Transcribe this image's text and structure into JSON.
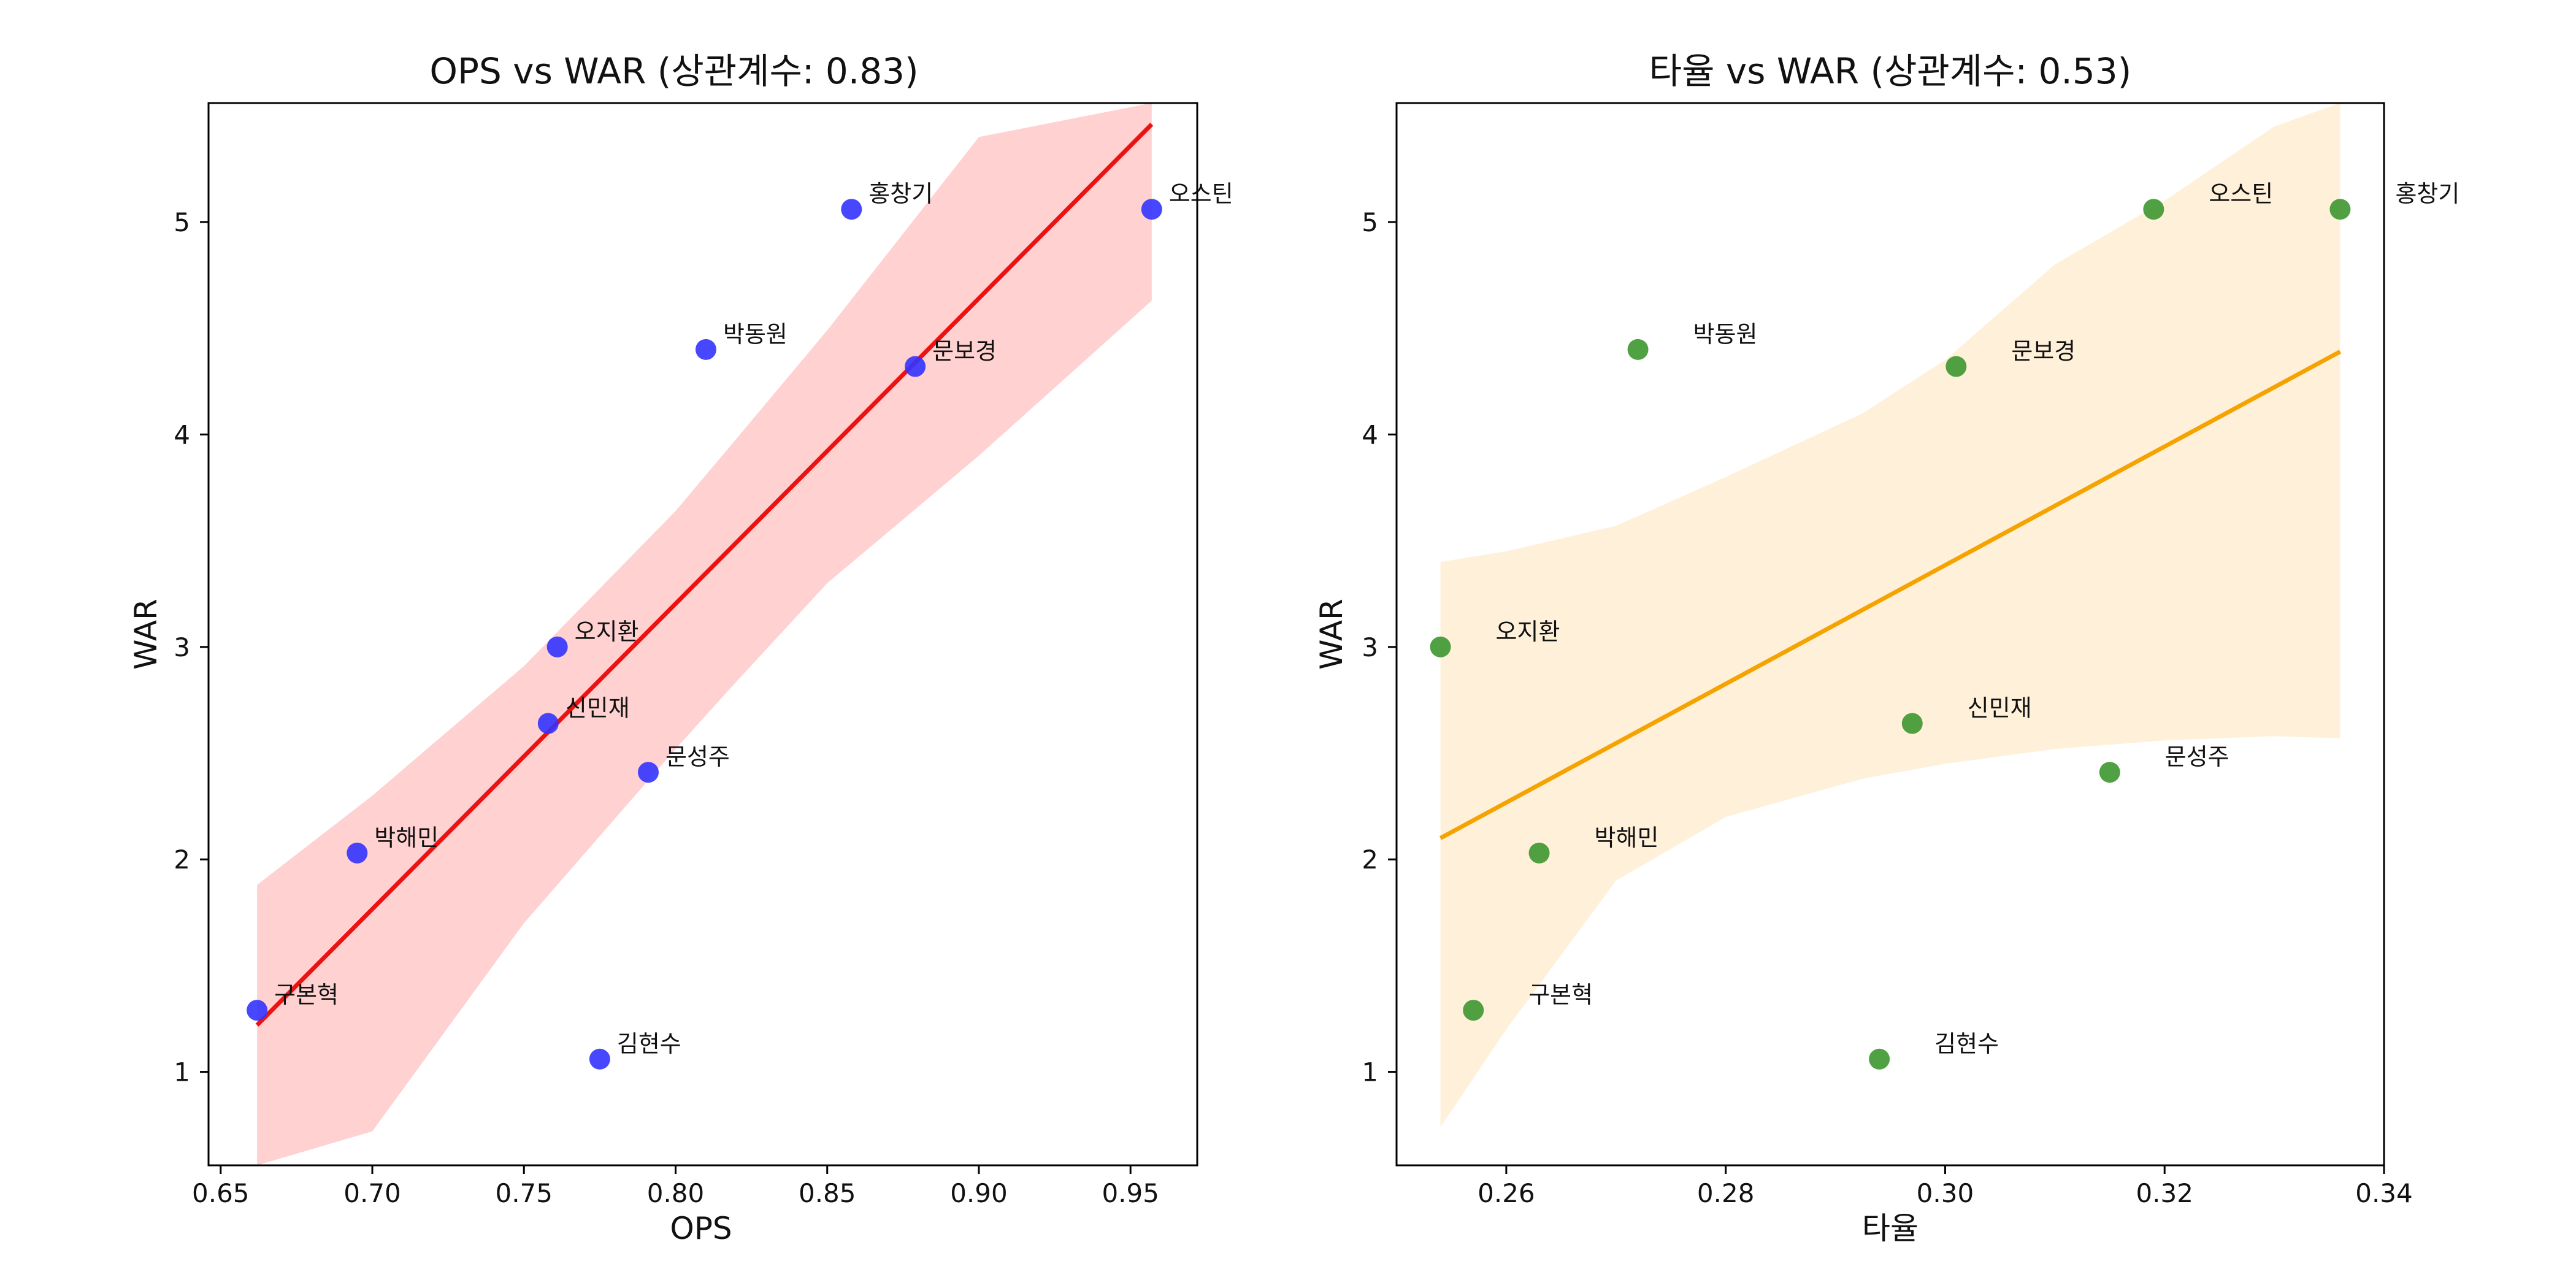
{
  "figure": {
    "background": "#ffffff"
  },
  "chart_data": [
    {
      "type": "scatter",
      "title": "OPS vs WAR (상관계수: 0.83)",
      "xlabel": "OPS",
      "ylabel": "WAR",
      "xlim": [
        0.646,
        0.972
      ],
      "ylim": [
        0.56,
        5.56
      ],
      "xticks": [
        0.65,
        0.7,
        0.75,
        0.8,
        0.85,
        0.9,
        0.95
      ],
      "xtick_labels": [
        "0.65",
        "0.70",
        "0.75",
        "0.80",
        "0.85",
        "0.90",
        "0.95"
      ],
      "yticks": [
        1,
        2,
        3,
        4,
        5
      ],
      "ytick_labels": [
        "1",
        "2",
        "3",
        "4",
        "5"
      ],
      "grid": false,
      "point_color": "#3333ff",
      "line_color": "#ee1111",
      "band_color": "#ffb3b3",
      "points": [
        {
          "name": "오스틴",
          "x": 0.957,
          "y": 5.06
        },
        {
          "name": "홍창기",
          "x": 0.858,
          "y": 5.06
        },
        {
          "name": "박동원",
          "x": 0.81,
          "y": 4.4
        },
        {
          "name": "문보경",
          "x": 0.879,
          "y": 4.32
        },
        {
          "name": "오지환",
          "x": 0.761,
          "y": 3.0
        },
        {
          "name": "신민재",
          "x": 0.758,
          "y": 2.64
        },
        {
          "name": "문성주",
          "x": 0.791,
          "y": 2.41
        },
        {
          "name": "박해민",
          "x": 0.695,
          "y": 2.03
        },
        {
          "name": "구본혁",
          "x": 0.662,
          "y": 1.29
        },
        {
          "name": "김현수",
          "x": 0.775,
          "y": 1.06
        }
      ],
      "regression": {
        "x": [
          0.662,
          0.957
        ],
        "y": [
          1.22,
          5.46
        ]
      },
      "confidence_band": {
        "x": [
          0.662,
          0.7,
          0.75,
          0.8,
          0.8177,
          0.85,
          0.9,
          0.957
        ],
        "upper": [
          1.88,
          2.3,
          2.91,
          3.64,
          3.94,
          4.49,
          5.4,
          5.56
        ],
        "lower": [
          0.56,
          0.72,
          1.7,
          2.52,
          2.8,
          3.3,
          3.9,
          4.63
        ]
      }
    },
    {
      "type": "scatter",
      "title": "타율 vs WAR (상관계수: 0.53)",
      "xlabel": "타율",
      "ylabel": "WAR",
      "xlim": [
        0.25,
        0.34
      ],
      "ylim": [
        0.56,
        5.56
      ],
      "xticks": [
        0.26,
        0.28,
        0.3,
        0.32,
        0.34
      ],
      "xtick_labels": [
        "0.26",
        "0.28",
        "0.30",
        "0.32",
        "0.34"
      ],
      "yticks": [
        1,
        2,
        3,
        4,
        5
      ],
      "ytick_labels": [
        "1",
        "2",
        "3",
        "4",
        "5"
      ],
      "grid": false,
      "point_color": "#3d9630",
      "line_color": "#f5a300",
      "band_color": "#ffe6bf",
      "points": [
        {
          "name": "오스틴",
          "x": 0.319,
          "y": 5.06
        },
        {
          "name": "홍창기",
          "x": 0.336,
          "y": 5.06
        },
        {
          "name": "박동원",
          "x": 0.272,
          "y": 4.4
        },
        {
          "name": "문보경",
          "x": 0.301,
          "y": 4.32
        },
        {
          "name": "오지환",
          "x": 0.254,
          "y": 3.0
        },
        {
          "name": "신민재",
          "x": 0.297,
          "y": 2.64
        },
        {
          "name": "문성주",
          "x": 0.315,
          "y": 2.41
        },
        {
          "name": "박해민",
          "x": 0.263,
          "y": 2.03
        },
        {
          "name": "구본혁",
          "x": 0.257,
          "y": 1.29
        },
        {
          "name": "김현수",
          "x": 0.294,
          "y": 1.06
        }
      ],
      "regression": {
        "x": [
          0.254,
          0.336
        ],
        "y": [
          2.1,
          4.39
        ]
      },
      "confidence_band": {
        "x": [
          0.254,
          0.26,
          0.27,
          0.28,
          0.2925,
          0.3,
          0.31,
          0.32,
          0.33,
          0.336
        ],
        "upper": [
          3.4,
          3.45,
          3.57,
          3.8,
          4.1,
          4.35,
          4.8,
          5.1,
          5.45,
          5.56
        ],
        "lower": [
          0.74,
          1.2,
          1.9,
          2.2,
          2.38,
          2.45,
          2.52,
          2.56,
          2.58,
          2.57
        ]
      }
    }
  ]
}
